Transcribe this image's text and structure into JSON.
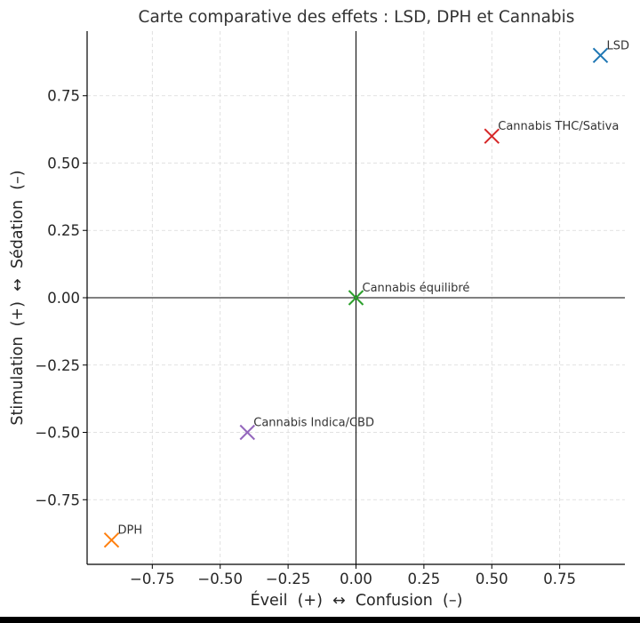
{
  "chart_data": {
    "type": "scatter",
    "title": "Carte comparative des effets : LSD, DPH et Cannabis",
    "xlabel": "Éveil  (+)  ↔  Confusion  (–)",
    "ylabel": "Stimulation  (+)  ↔  Sédation  (–)",
    "xlim": [
      -0.99,
      0.99
    ],
    "ylim": [
      -0.99,
      0.99
    ],
    "xticks": [
      -0.75,
      -0.5,
      -0.25,
      0.0,
      0.25,
      0.5,
      0.75
    ],
    "xtick_labels": [
      "−0.75",
      "−0.50",
      "−0.25",
      "0.00",
      "0.25",
      "0.50",
      "0.75"
    ],
    "yticks": [
      0.75,
      0.5,
      0.25,
      0.0,
      -0.25,
      -0.5,
      -0.75
    ],
    "ytick_labels": [
      "0.75",
      "0.50",
      "0.25",
      "0.00",
      "−0.25",
      "−0.50",
      "−0.75"
    ],
    "grid": true,
    "marker": "x",
    "points": [
      {
        "label": "LSD",
        "x": 0.9,
        "y": 0.9,
        "color": "#1f77b4"
      },
      {
        "label": "DPH",
        "x": -0.9,
        "y": -0.9,
        "color": "#ff7f0e"
      },
      {
        "label": "Cannabis équilibré",
        "x": 0.0,
        "y": 0.0,
        "color": "#2ca02c"
      },
      {
        "label": "Cannabis THC/Sativa",
        "x": 0.5,
        "y": 0.6,
        "color": "#d62728"
      },
      {
        "label": "Cannabis Indica/CBD",
        "x": -0.4,
        "y": -0.5,
        "color": "#9467bd"
      }
    ]
  }
}
